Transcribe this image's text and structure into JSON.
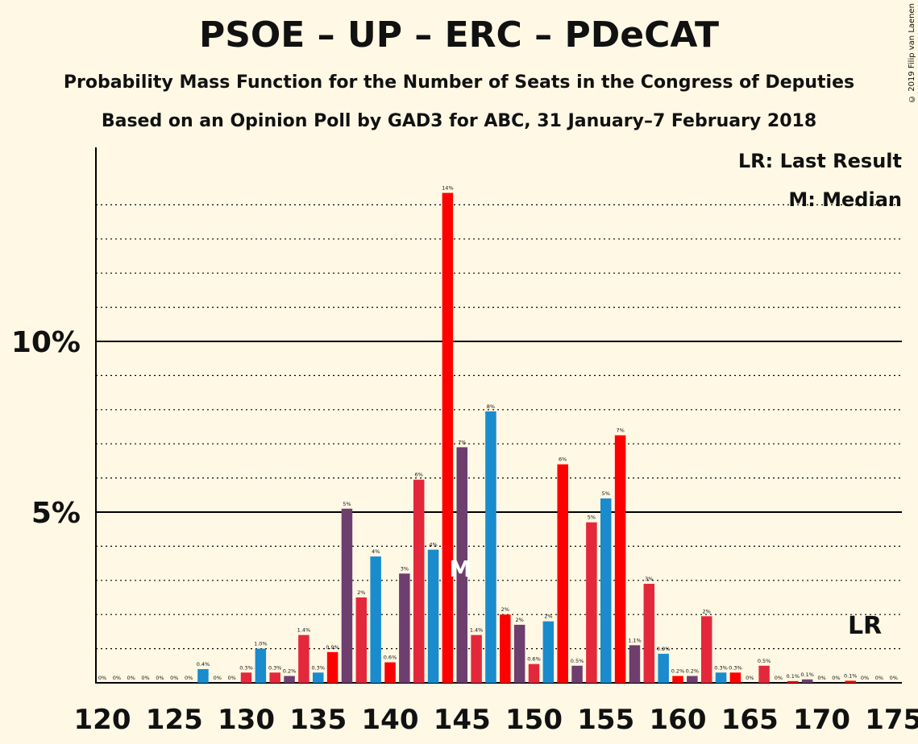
{
  "chart_data": {
    "type": "bar",
    "title": "PSOE – UP – ERC – PDeCAT",
    "subtitle": "Probability Mass Function for the Number of Seats in the Congress of Deputies",
    "subtitle2": "Based on an Opinion Poll by GAD3 for ABC, 31 January–7 February 2018",
    "copyright": "© 2019 Filip van Laenen",
    "legend": {
      "last_result": "LR: Last Result",
      "median": "M: Median"
    },
    "markers": {
      "median_label": "M",
      "median_seat": 145,
      "last_result_label": "LR",
      "last_result_seat": 173
    },
    "xlim": [
      120,
      175
    ],
    "ylim": [
      0,
      15
    ],
    "x_ticks": [
      120,
      125,
      130,
      135,
      140,
      145,
      150,
      155,
      160,
      165,
      170,
      175
    ],
    "y_ticks": [
      {
        "value": 5,
        "label": "5%"
      },
      {
        "value": 10,
        "label": "10%"
      }
    ],
    "grid": "dotted lines every 1%, solid at 5% and 10%",
    "colors": {
      "red": "#E3283C",
      "bright_red": "#FF0000",
      "blue": "#1A8BCC",
      "purple": "#6E3E6E"
    },
    "bars": [
      {
        "seats": 120,
        "value": 0,
        "label": "0%",
        "color": "red"
      },
      {
        "seats": 121,
        "value": 0,
        "label": "0%",
        "color": "red"
      },
      {
        "seats": 122,
        "value": 0,
        "label": "0%",
        "color": "red"
      },
      {
        "seats": 123,
        "value": 0,
        "label": "0%",
        "color": "red"
      },
      {
        "seats": 124,
        "value": 0,
        "label": "0%",
        "color": "red"
      },
      {
        "seats": 125,
        "value": 0,
        "label": "0%",
        "color": "red"
      },
      {
        "seats": 126,
        "value": 0,
        "label": "0%",
        "color": "red"
      },
      {
        "seats": 127,
        "value": 0.4,
        "label": "0.4%",
        "color": "blue"
      },
      {
        "seats": 128,
        "value": 0,
        "label": "0%",
        "color": "red"
      },
      {
        "seats": 129,
        "value": 0,
        "label": "0%",
        "color": "red"
      },
      {
        "seats": 130,
        "value": 0.3,
        "label": "0.3%",
        "color": "red"
      },
      {
        "seats": 131,
        "value": 1.0,
        "label": "1.0%",
        "color": "blue"
      },
      {
        "seats": 132,
        "value": 0.3,
        "label": "0.3%",
        "color": "red"
      },
      {
        "seats": 133,
        "value": 0.2,
        "label": "0.2%",
        "color": "purple"
      },
      {
        "seats": 134,
        "value": 1.4,
        "label": "1.4%",
        "color": "red"
      },
      {
        "seats": 135,
        "value": 0.3,
        "label": "0.3%",
        "color": "blue"
      },
      {
        "seats": 136,
        "value": 0.9,
        "label": "0.9%",
        "color": "bright_red"
      },
      {
        "seats": 137,
        "value": 5.1,
        "label": "5%",
        "color": "purple"
      },
      {
        "seats": 138,
        "value": 2.5,
        "label": "2%",
        "color": "red"
      },
      {
        "seats": 139,
        "value": 3.7,
        "label": "4%",
        "color": "blue"
      },
      {
        "seats": 140,
        "value": 0.6,
        "label": "0.6%",
        "color": "bright_red"
      },
      {
        "seats": 141,
        "value": 3.2,
        "label": "3%",
        "color": "purple"
      },
      {
        "seats": 142,
        "value": 5.95,
        "label": "6%",
        "color": "red"
      },
      {
        "seats": 143,
        "value": 3.9,
        "label": "4%",
        "color": "blue"
      },
      {
        "seats": 144,
        "value": 14.35,
        "label": "14%",
        "color": "bright_red"
      },
      {
        "seats": 145,
        "value": 6.9,
        "label": "7%",
        "color": "purple"
      },
      {
        "seats": 146,
        "value": 1.4,
        "label": "1.4%",
        "color": "red"
      },
      {
        "seats": 147,
        "value": 7.95,
        "label": "8%",
        "color": "blue"
      },
      {
        "seats": 148,
        "value": 2.0,
        "label": "2%",
        "color": "bright_red"
      },
      {
        "seats": 149,
        "value": 1.7,
        "label": "2%",
        "color": "purple"
      },
      {
        "seats": 150,
        "value": 0.55,
        "label": "0.6%",
        "color": "red"
      },
      {
        "seats": 151,
        "value": 1.8,
        "label": "2%",
        "color": "blue"
      },
      {
        "seats": 152,
        "value": 6.4,
        "label": "6%",
        "color": "bright_red"
      },
      {
        "seats": 153,
        "value": 0.5,
        "label": "0.5%",
        "color": "purple"
      },
      {
        "seats": 154,
        "value": 4.7,
        "label": "5%",
        "color": "red"
      },
      {
        "seats": 155,
        "value": 5.4,
        "label": "5%",
        "color": "blue"
      },
      {
        "seats": 156,
        "value": 7.25,
        "label": "7%",
        "color": "bright_red"
      },
      {
        "seats": 157,
        "value": 1.1,
        "label": "1.1%",
        "color": "purple"
      },
      {
        "seats": 158,
        "value": 2.9,
        "label": "3%",
        "color": "red"
      },
      {
        "seats": 159,
        "value": 0.85,
        "label": "0.9%",
        "color": "blue"
      },
      {
        "seats": 160,
        "value": 0.2,
        "label": "0.2%",
        "color": "bright_red"
      },
      {
        "seats": 161,
        "value": 0.2,
        "label": "0.2%",
        "color": "purple"
      },
      {
        "seats": 162,
        "value": 1.95,
        "label": "2%",
        "color": "red"
      },
      {
        "seats": 163,
        "value": 0.3,
        "label": "0.3%",
        "color": "blue"
      },
      {
        "seats": 164,
        "value": 0.3,
        "label": "0.3%",
        "color": "bright_red"
      },
      {
        "seats": 165,
        "value": 0,
        "label": "0%",
        "color": "purple"
      },
      {
        "seats": 166,
        "value": 0.5,
        "label": "0.5%",
        "color": "red"
      },
      {
        "seats": 167,
        "value": 0,
        "label": "0%",
        "color": "blue"
      },
      {
        "seats": 168,
        "value": 0.05,
        "label": "0.1%",
        "color": "bright_red"
      },
      {
        "seats": 169,
        "value": 0.1,
        "label": "0.1%",
        "color": "purple"
      },
      {
        "seats": 170,
        "value": 0,
        "label": "0%",
        "color": "red"
      },
      {
        "seats": 171,
        "value": 0,
        "label": "0%",
        "color": "blue"
      },
      {
        "seats": 172,
        "value": 0.06,
        "label": "0.1%",
        "color": "bright_red"
      },
      {
        "seats": 173,
        "value": 0,
        "label": "0%",
        "color": "purple"
      },
      {
        "seats": 174,
        "value": 0,
        "label": "0%",
        "color": "red"
      },
      {
        "seats": 175,
        "value": 0,
        "label": "0%",
        "color": "blue"
      }
    ]
  }
}
